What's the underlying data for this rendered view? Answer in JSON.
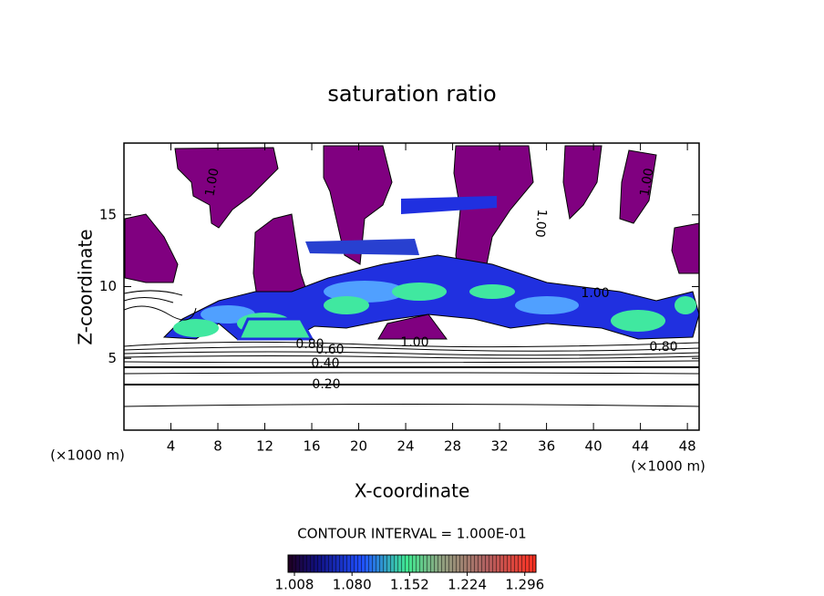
{
  "chart_data": {
    "type": "contour",
    "title": "saturation ratio",
    "x_label": "X-coordinate",
    "y_label": "Z-coordinate",
    "axis_unit": "(×1000 m)",
    "annotation": "CONTOUR INTERVAL = 1.000E-01",
    "xlim": [
      0,
      49
    ],
    "xticks": [
      4,
      8,
      12,
      16,
      20,
      24,
      28,
      32,
      36,
      40,
      44,
      48
    ],
    "ylim": [
      0,
      20
    ],
    "yticks": [
      5,
      10,
      15
    ],
    "contour_labels": [
      {
        "value": 0.2,
        "label": "0.20"
      },
      {
        "value": 0.4,
        "label": "0.40"
      },
      {
        "value": 0.6,
        "label": "0.60"
      },
      {
        "value": 0.8,
        "label": "0.80"
      },
      {
        "value": 0.8,
        "label": "0.80"
      },
      {
        "value": 1,
        "label": "1.00"
      },
      {
        "value": 1,
        "label": "1.00"
      },
      {
        "value": 1,
        "label": "1.00"
      },
      {
        "value": 1,
        "label": "1.00"
      },
      {
        "value": 1,
        "label": "1.00"
      }
    ],
    "colorbar": {
      "clim": [
        1.0,
        1.31
      ],
      "ticks": [
        1.008,
        {
          "value": 1.08,
          "label": "1.080"
        },
        1.152,
        1.224,
        1.296
      ]
    }
  }
}
